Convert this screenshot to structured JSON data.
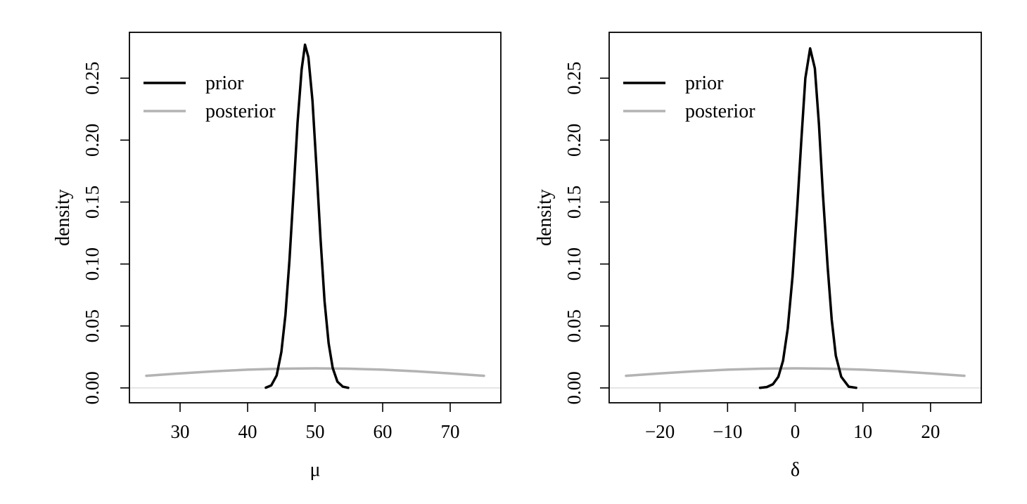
{
  "colors": {
    "prior": "#000000",
    "posterior": "#b3b3b3",
    "zero_line": "#dddddd",
    "axis": "#000000"
  },
  "chart_data": [
    {
      "type": "line",
      "xlabel": "μ",
      "ylabel": "density",
      "xlim": [
        22.5,
        77.5
      ],
      "ylim": [
        -0.012,
        0.287
      ],
      "x_ticks": [
        30,
        40,
        50,
        60,
        70
      ],
      "x_tick_labels": [
        "30",
        "40",
        "50",
        "60",
        "70"
      ],
      "y_ticks": [
        0.0,
        0.05,
        0.1,
        0.15,
        0.2,
        0.25
      ],
      "y_tick_labels": [
        "0.00",
        "0.05",
        "0.10",
        "0.15",
        "0.20",
        "0.25"
      ],
      "legend_position": "top-left",
      "grid": false,
      "reference_line_y": 0,
      "series": [
        {
          "name": "prior",
          "x": [
            42.7,
            43.5,
            44.3,
            45.0,
            45.6,
            46.2,
            46.8,
            47.4,
            48.0,
            48.5,
            49.0,
            49.6,
            50.2,
            50.8,
            51.4,
            52.0,
            52.6,
            53.3,
            54.1,
            54.9
          ],
          "y": [
            0.0002,
            0.002,
            0.01,
            0.029,
            0.059,
            0.103,
            0.158,
            0.214,
            0.257,
            0.277,
            0.267,
            0.232,
            0.178,
            0.12,
            0.07,
            0.036,
            0.016,
            0.005,
            0.001,
            0.0001
          ]
        },
        {
          "name": "posterior",
          "x": [
            25,
            30,
            35,
            40,
            45,
            50,
            55,
            60,
            65,
            70,
            75
          ],
          "y": [
            0.0098,
            0.0117,
            0.0134,
            0.0147,
            0.0155,
            0.0158,
            0.0155,
            0.0147,
            0.0134,
            0.0117,
            0.0098
          ]
        }
      ]
    },
    {
      "type": "line",
      "xlabel": "δ",
      "ylabel": "density",
      "xlim": [
        -27.5,
        27.5
      ],
      "ylim": [
        -0.012,
        0.287
      ],
      "x_ticks": [
        -20,
        -10,
        0,
        10,
        20
      ],
      "x_tick_labels": [
        "−20",
        "−10",
        "0",
        "10",
        "20"
      ],
      "y_ticks": [
        0.0,
        0.05,
        0.1,
        0.15,
        0.2,
        0.25
      ],
      "y_tick_labels": [
        "0.00",
        "0.05",
        "0.10",
        "0.15",
        "0.20",
        "0.25"
      ],
      "legend_position": "top-left",
      "grid": false,
      "reference_line_y": 0,
      "series": [
        {
          "name": "prior",
          "x": [
            -5.2,
            -4.2,
            -3.3,
            -2.5,
            -1.8,
            -1.1,
            -0.4,
            0.3,
            0.9,
            1.5,
            2.2,
            2.9,
            3.5,
            4.1,
            4.8,
            5.4,
            6.0,
            6.8,
            7.9,
            9.0
          ],
          "y": [
            0.0001,
            0.0007,
            0.003,
            0.009,
            0.022,
            0.048,
            0.09,
            0.146,
            0.2,
            0.25,
            0.274,
            0.258,
            0.213,
            0.156,
            0.097,
            0.055,
            0.026,
            0.009,
            0.001,
            0.0001
          ]
        },
        {
          "name": "posterior",
          "x": [
            -25,
            -20,
            -15,
            -10,
            -5,
            0,
            5,
            10,
            15,
            20,
            25
          ],
          "y": [
            0.0098,
            0.0117,
            0.0134,
            0.0147,
            0.0155,
            0.0158,
            0.0155,
            0.0147,
            0.0134,
            0.0117,
            0.0098
          ]
        }
      ]
    }
  ]
}
